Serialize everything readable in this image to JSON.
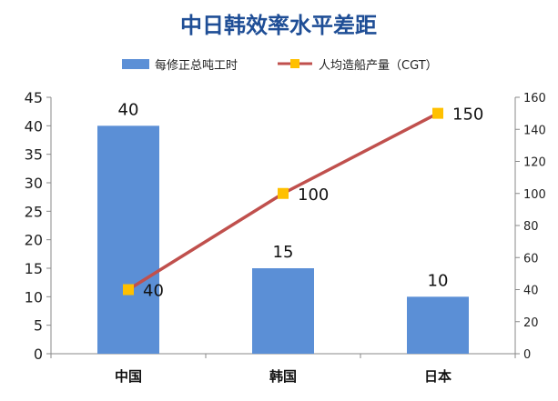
{
  "chart_data": {
    "type": "bar+line",
    "title": "中日韩效率水平差距",
    "categories": [
      "中国",
      "韩国",
      "日本"
    ],
    "series": [
      {
        "name": "每修正总吨工时",
        "type": "bar",
        "axis": "left",
        "values": [
          40,
          15,
          10
        ],
        "color": "#5b8fd6"
      },
      {
        "name": "人均造船产量（CGT）",
        "type": "line",
        "axis": "right",
        "values": [
          40,
          100,
          150
        ],
        "color": "#c0504d",
        "marker_color": "#ffc000"
      }
    ],
    "ylim_left": [
      0,
      45
    ],
    "yticks_left": [
      "0",
      "5",
      "10",
      "15",
      "20",
      "25",
      "30",
      "35",
      "40",
      "45"
    ],
    "ylim_right": [
      0,
      160
    ],
    "yticks_right": [
      "0",
      "20",
      "40",
      "60",
      "80",
      "100",
      "120",
      "140",
      "160"
    ],
    "grid": false,
    "legend_position": "top"
  }
}
